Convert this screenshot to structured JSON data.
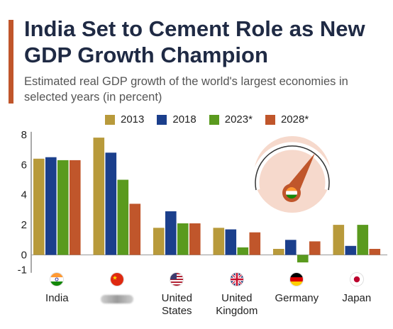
{
  "header": {
    "title": "India Set to Cement Role as New GDP Growth Champion",
    "subtitle": "Estimated real GDP growth of the world's largest economies in selected years (in percent)"
  },
  "colors": {
    "accent": "#c0562b",
    "title": "#1f2a44",
    "axis": "#555555",
    "gauge_bg": "#f6d9cc"
  },
  "chart_data": {
    "type": "bar",
    "categories": [
      "India",
      "",
      "United\nStates",
      "United\nKingdom",
      "Germany",
      "Japan"
    ],
    "category_flags": [
      "india-flag-icon",
      "china-flag-icon",
      "us-flag-icon",
      "uk-flag-icon",
      "germany-flag-icon",
      "japan-flag-icon"
    ],
    "series": [
      {
        "name": "2013",
        "color": "#b89a3b",
        "values": [
          6.4,
          7.8,
          1.8,
          1.8,
          0.4,
          2.0
        ]
      },
      {
        "name": "2018",
        "color": "#1b3f8c",
        "values": [
          6.5,
          6.8,
          2.9,
          1.7,
          1.0,
          0.6
        ]
      },
      {
        "name": "2023*",
        "color": "#5a9a1e",
        "values": [
          6.3,
          5.0,
          2.1,
          0.5,
          -0.5,
          2.0
        ]
      },
      {
        "name": "2028*",
        "color": "#c0562b",
        "values": [
          6.3,
          3.4,
          2.1,
          1.5,
          0.9,
          0.4
        ]
      }
    ],
    "y_ticks": [
      "8",
      "6",
      "4",
      "2",
      "0",
      "-1"
    ],
    "ylim": [
      -1,
      8
    ],
    "grid": false,
    "legend_position": "top"
  }
}
